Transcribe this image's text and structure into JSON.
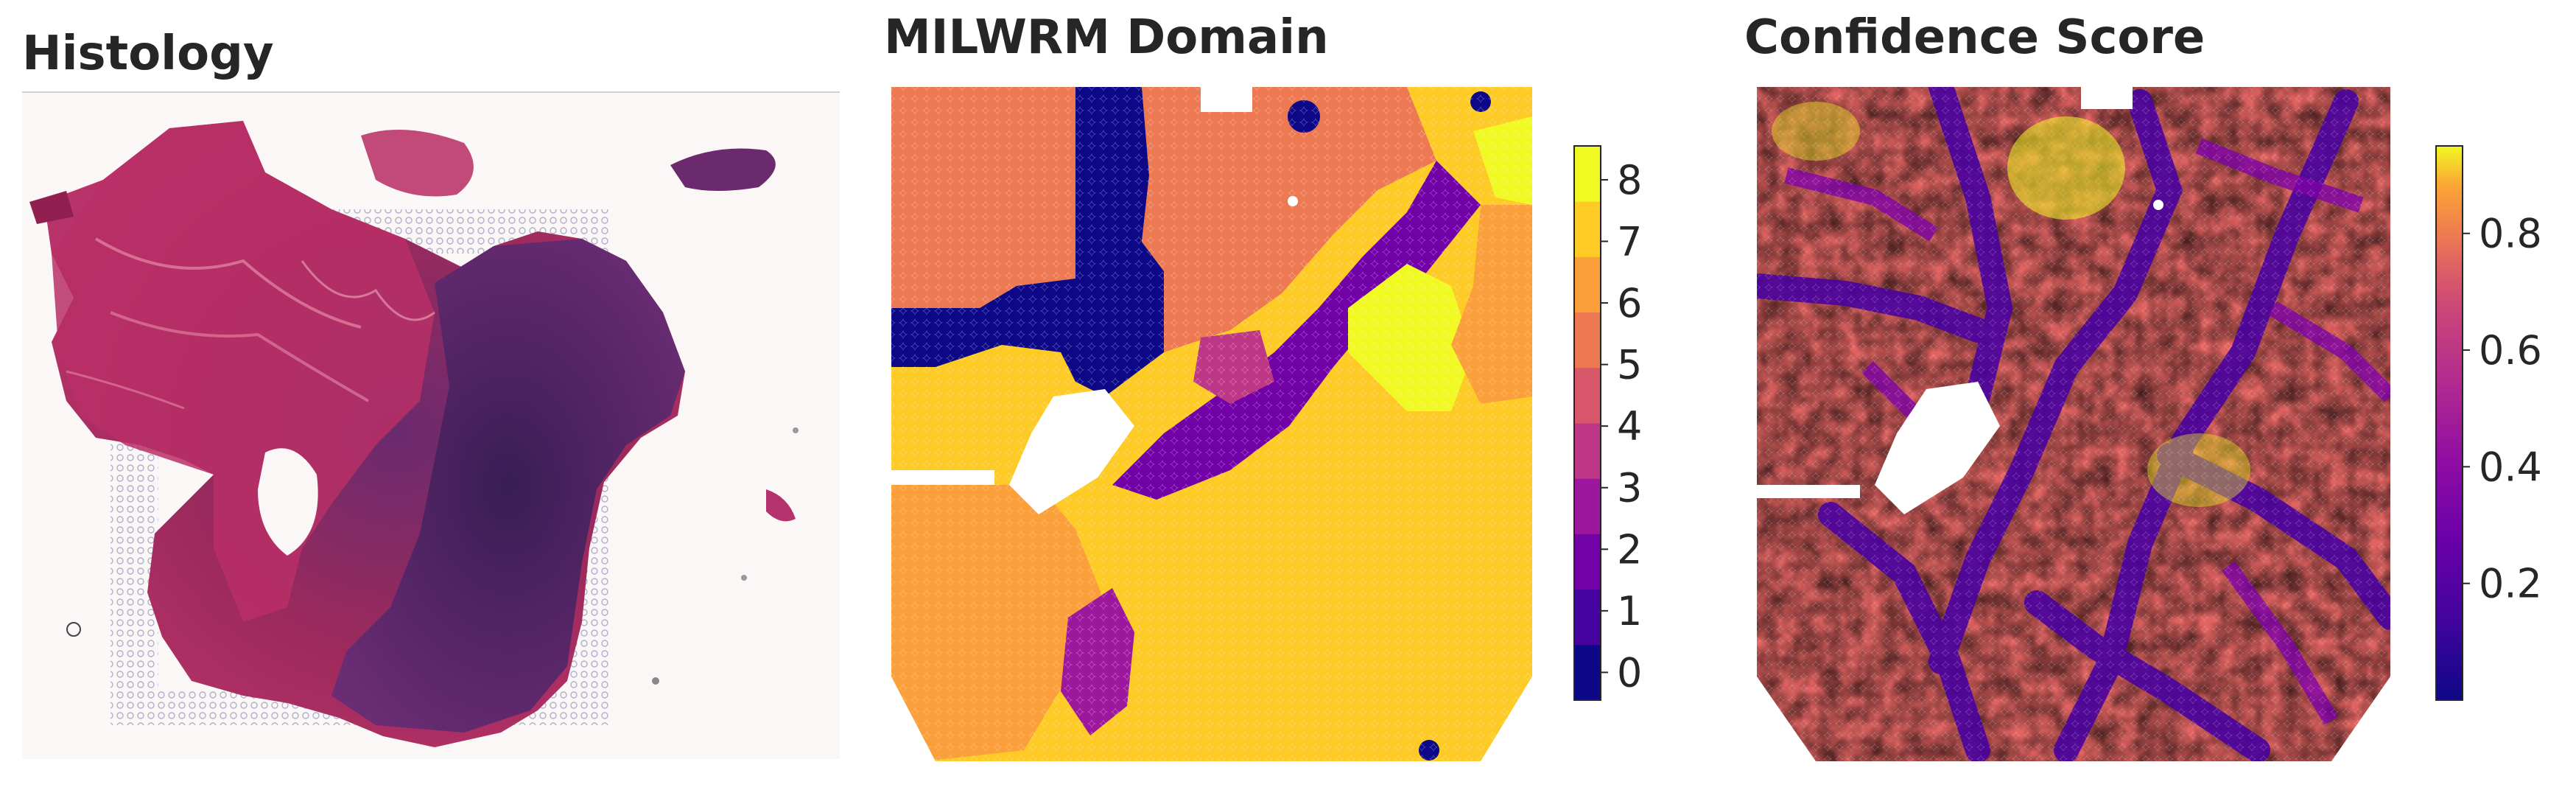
{
  "panels": {
    "histology": {
      "title": "Histology"
    },
    "domain": {
      "title": "MILWRM Domain",
      "colorbar": {
        "ticks": [
          "0",
          "1",
          "2",
          "3",
          "4",
          "5",
          "6",
          "7",
          "8"
        ],
        "colors": [
          "#0d0887",
          "#46039f",
          "#7201a8",
          "#9c179e",
          "#bd3786",
          "#d8576b",
          "#ed7953",
          "#fb9f3a",
          "#fdca26",
          "#f0f921"
        ]
      }
    },
    "confidence": {
      "title": "Confidence Score",
      "colorbar": {
        "ticks": [
          "0.2",
          "0.4",
          "0.6",
          "0.8"
        ],
        "tick_values": [
          0.2,
          0.4,
          0.6,
          0.8
        ],
        "range": [
          0.0,
          0.95
        ],
        "colormap": "plasma"
      }
    }
  }
}
